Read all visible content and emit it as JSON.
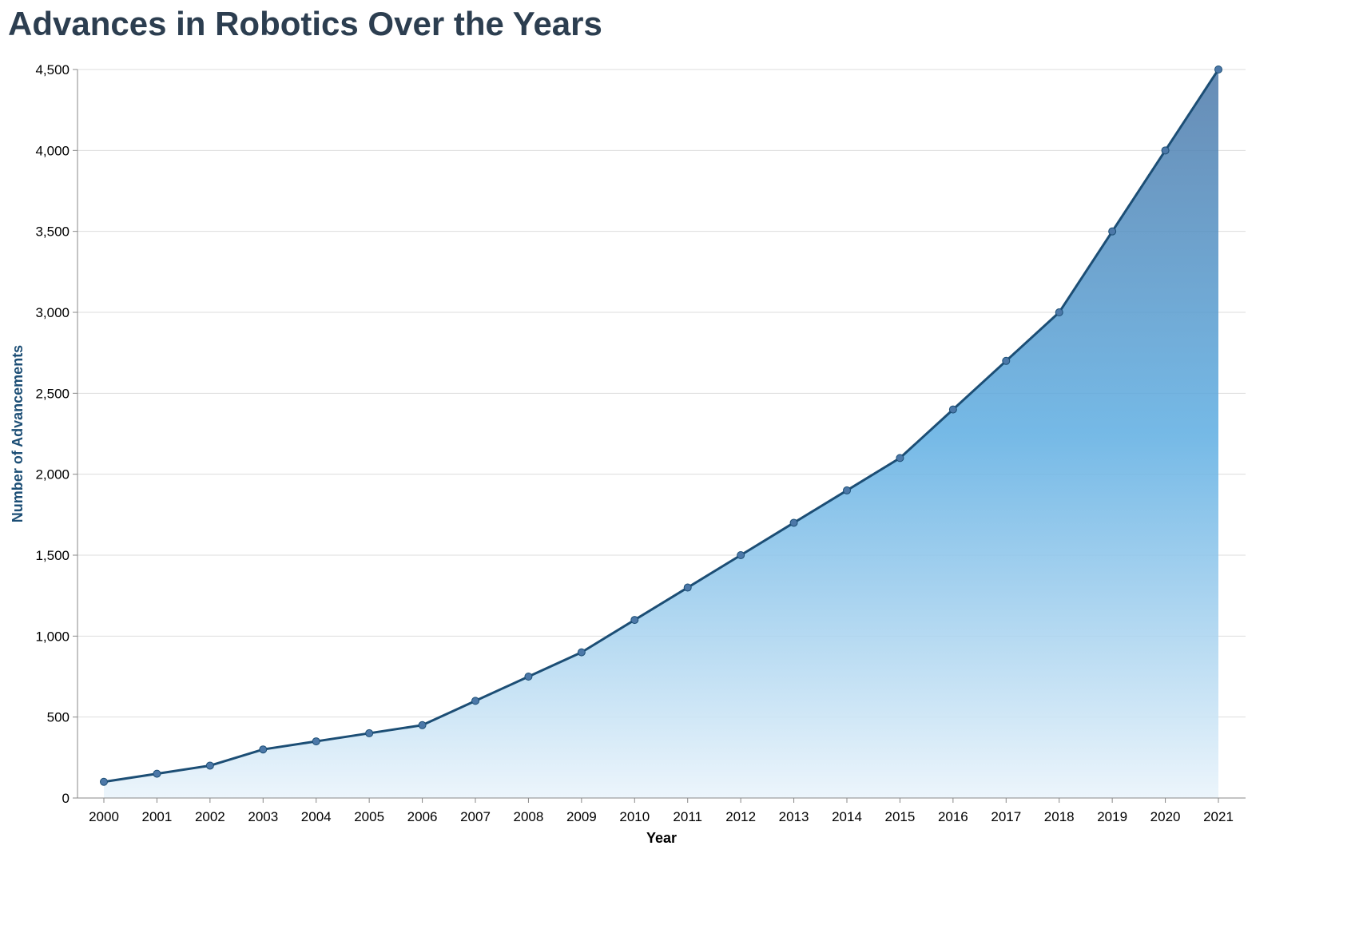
{
  "title": "Advances in Robotics Over the Years",
  "colors": {
    "title": "#2c3e50",
    "line": "#1c4e75",
    "point": "#4c78a8",
    "fill_top": "#4c78a8",
    "fill_mid": "#5dade2",
    "fill_bottom": "#eaf4fb",
    "grid": "#dddddd",
    "axis": "#888888",
    "ylabel": "#1c4e75",
    "xlabel": "#000000"
  },
  "chart_data": {
    "type": "area",
    "title": "Advances in Robotics Over the Years",
    "xlabel": "Year",
    "ylabel": "Number of Advancements",
    "x": [
      "2000",
      "2001",
      "2002",
      "2003",
      "2004",
      "2005",
      "2006",
      "2007",
      "2008",
      "2009",
      "2010",
      "2011",
      "2012",
      "2013",
      "2014",
      "2015",
      "2016",
      "2017",
      "2018",
      "2019",
      "2020",
      "2021"
    ],
    "values": [
      100,
      150,
      200,
      300,
      350,
      400,
      450,
      600,
      750,
      900,
      1100,
      1300,
      1500,
      1700,
      1900,
      2100,
      2400,
      2700,
      3000,
      3500,
      4000,
      4500
    ],
    "ylim": [
      0,
      4500
    ],
    "yticks": [
      0,
      500,
      1000,
      1500,
      2000,
      2500,
      3000,
      3500,
      4000,
      4500
    ],
    "ytick_labels": [
      "0",
      "500",
      "1,000",
      "1,500",
      "2,000",
      "2,500",
      "3,000",
      "3,500",
      "4,000",
      "4,500"
    ],
    "grid": true,
    "points": true
  }
}
